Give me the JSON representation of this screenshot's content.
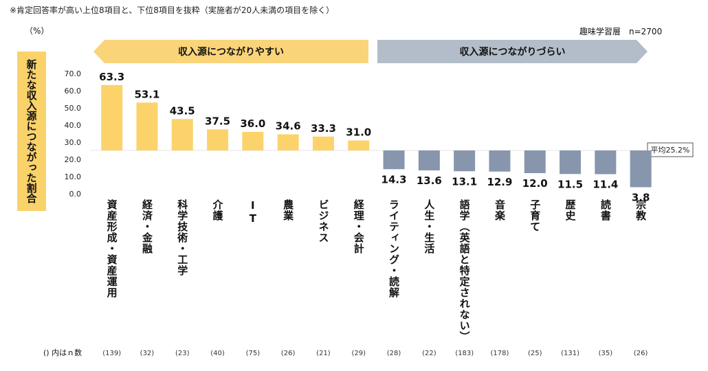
{
  "note": "※肯定回答率が高い上位8項目と、下位8項目を抜粋（実施者が20人未満の項目を除く）",
  "unit_label": "（%）",
  "sample_label": "趣味学習層　n=2700",
  "y_title": "新たな収入源につながった割合",
  "arrows": {
    "left": "収入源につながりやすい",
    "right": "収入源につながりづらい"
  },
  "average_label": "平均25.2%",
  "count_label": "() 内はｎ数",
  "colors": {
    "high": "#fcd36b",
    "low": "#8796ad",
    "left_arrow": "#fad479",
    "right_arrow": "#b3bdca",
    "title_bg": "#f9d26a"
  },
  "chart_data": {
    "type": "bar",
    "title": "",
    "ylabel": "新たな収入源につながった割合",
    "ylim": [
      0,
      70
    ],
    "yticks": [
      "70.0",
      "60.0",
      "50.0",
      "40.0",
      "30.0",
      "20.0",
      "10.0",
      "0.0"
    ],
    "baseline": 25.2,
    "categories": [
      "資産形成・資産運用",
      "経済・金融",
      "科学技術・工学",
      "介護",
      "IT",
      "農業",
      "ビジネス",
      "経理・会計",
      "ライティング・読解",
      "人生・生活",
      "語学（英語と特定されない）",
      "音楽",
      "子育て",
      "歴史",
      "読書",
      "宗教"
    ],
    "values": [
      63.3,
      53.1,
      43.5,
      37.5,
      36.0,
      34.6,
      33.3,
      31.0,
      14.3,
      13.6,
      13.1,
      12.9,
      12.0,
      11.5,
      11.4,
      3.8
    ],
    "value_labels": [
      "63.3",
      "53.1",
      "43.5",
      "37.5",
      "36.0",
      "34.6",
      "33.3",
      "31.0",
      "14.3",
      "13.6",
      "13.1",
      "12.9",
      "12.0",
      "11.5",
      "11.4",
      "3.8"
    ],
    "counts": [
      "(139)",
      "(32)",
      "(23)",
      "(40)",
      "(75)",
      "(26)",
      "(21)",
      "(29)",
      "(28)",
      "(22)",
      "(183)",
      "(178)",
      "(25)",
      "(131)",
      "(35)",
      "(26)"
    ]
  }
}
